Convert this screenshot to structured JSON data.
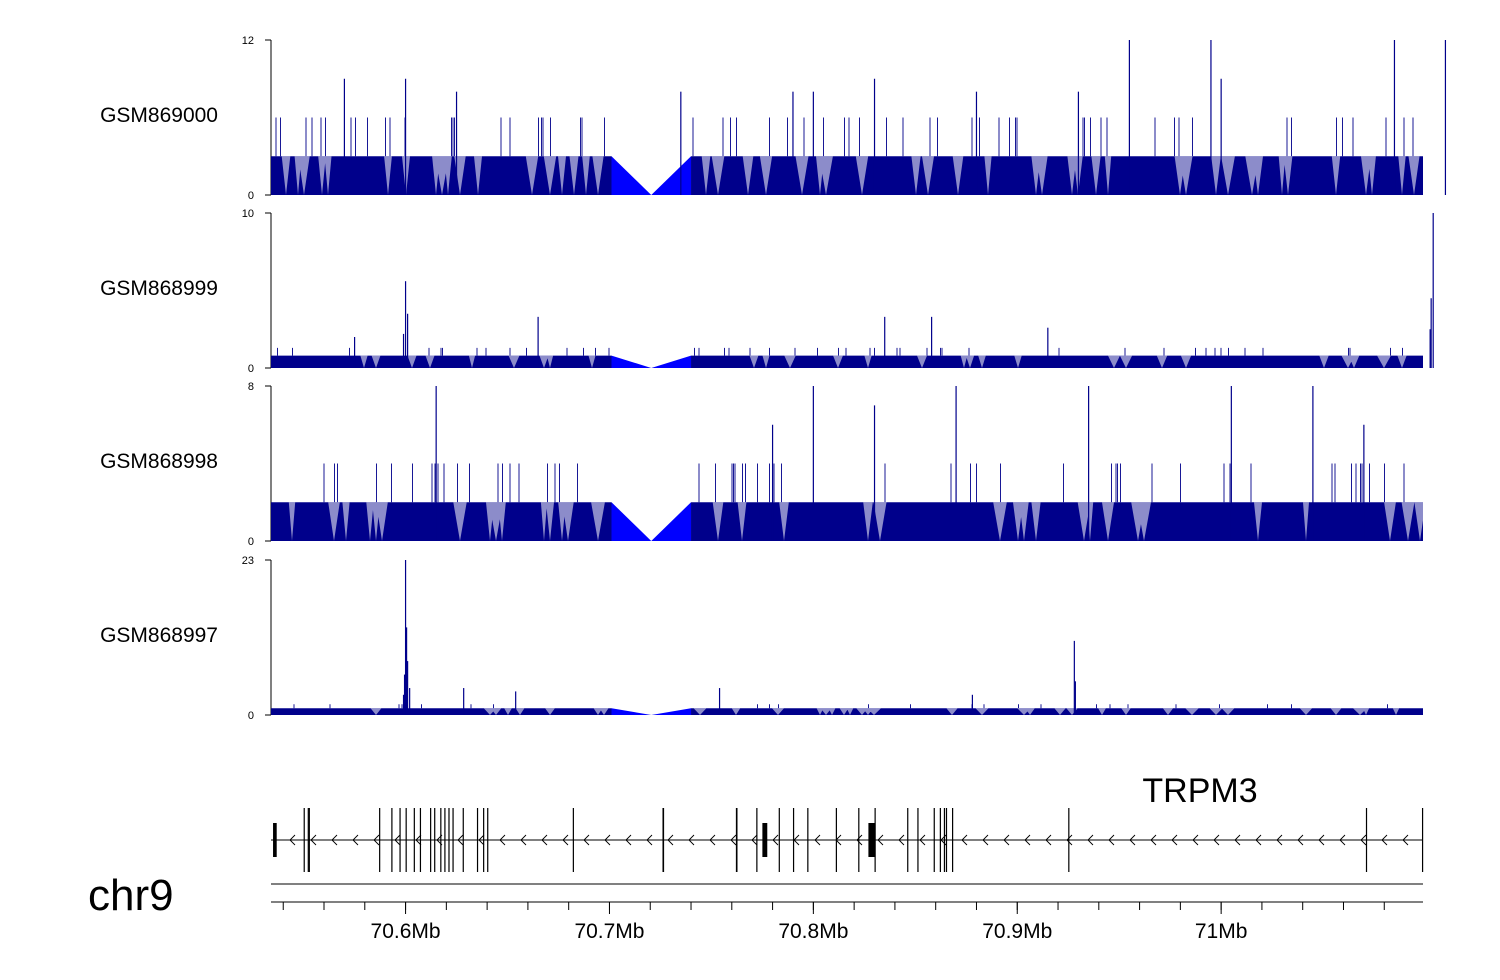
{
  "colors": {
    "signal": "#00008B",
    "fill": "#0000FF",
    "axis": "#000000",
    "background": "#FFFFFF"
  },
  "chromosome": "chr9",
  "gene": {
    "name": "TRPM3",
    "strand": "-"
  },
  "chart_data": [
    {
      "type": "area",
      "track": "GSM869000",
      "ylim": [
        0,
        12
      ],
      "yticks": [
        "0",
        "12"
      ],
      "baseline": 3,
      "medium_level": 6,
      "gap_mb": [
        70.701,
        70.74
      ],
      "seed": 11,
      "medium_rate": 0.09,
      "spikes": [
        {
          "x": 70.625,
          "y": 8
        },
        {
          "x": 70.6,
          "y": 9
        },
        {
          "x": 70.83,
          "y": 9
        },
        {
          "x": 70.8,
          "y": 8
        },
        {
          "x": 70.88,
          "y": 8
        },
        {
          "x": 70.93,
          "y": 8
        },
        {
          "x": 70.955,
          "y": 12
        },
        {
          "x": 70.995,
          "y": 12
        },
        {
          "x": 71.085,
          "y": 12
        },
        {
          "x": 71.11,
          "y": 12
        },
        {
          "x": 71.0,
          "y": 9
        },
        {
          "x": 70.735,
          "y": 8
        },
        {
          "x": 70.79,
          "y": 8
        },
        {
          "x": 70.57,
          "y": 9
        }
      ]
    },
    {
      "type": "area",
      "track": "GSM868999",
      "ylim": [
        0,
        10
      ],
      "yticks": [
        "0",
        "10"
      ],
      "baseline": 0.8,
      "medium_level": 1.3,
      "gap_mb": [
        70.701,
        70.74
      ],
      "seed": 22,
      "medium_rate": 0.05,
      "spikes": [
        {
          "x": 70.6,
          "y": 5.6
        },
        {
          "x": 70.601,
          "y": 3.5
        },
        {
          "x": 70.599,
          "y": 2.2
        },
        {
          "x": 70.665,
          "y": 3.3
        },
        {
          "x": 70.835,
          "y": 3.3
        },
        {
          "x": 70.858,
          "y": 3.3
        },
        {
          "x": 70.915,
          "y": 2.6
        },
        {
          "x": 71.104,
          "y": 10
        },
        {
          "x": 71.103,
          "y": 4.5
        },
        {
          "x": 71.1025,
          "y": 2.5
        },
        {
          "x": 70.575,
          "y": 2.0
        }
      ]
    },
    {
      "type": "area",
      "track": "GSM868998",
      "ylim": [
        0,
        8
      ],
      "yticks": [
        "0",
        "8"
      ],
      "baseline": 2,
      "medium_level": 4,
      "gap_mb": [
        70.701,
        70.74
      ],
      "seed": 33,
      "medium_rate": 0.1,
      "spikes": [
        {
          "x": 70.615,
          "y": 8
        },
        {
          "x": 70.8,
          "y": 8
        },
        {
          "x": 70.87,
          "y": 8
        },
        {
          "x": 70.935,
          "y": 8
        },
        {
          "x": 71.005,
          "y": 8
        },
        {
          "x": 71.045,
          "y": 8
        },
        {
          "x": 70.78,
          "y": 6
        },
        {
          "x": 70.83,
          "y": 7
        },
        {
          "x": 71.07,
          "y": 6
        }
      ]
    },
    {
      "type": "area",
      "track": "GSM868997",
      "ylim": [
        0,
        23
      ],
      "yticks": [
        "0",
        "23"
      ],
      "baseline": 1,
      "medium_level": 1.6,
      "gap_mb": [
        70.701,
        70.74
      ],
      "seed": 44,
      "medium_rate": 0.04,
      "spikes": [
        {
          "x": 70.6,
          "y": 23
        },
        {
          "x": 70.6005,
          "y": 13
        },
        {
          "x": 70.601,
          "y": 8
        },
        {
          "x": 70.5995,
          "y": 6
        },
        {
          "x": 70.602,
          "y": 4
        },
        {
          "x": 70.599,
          "y": 3
        },
        {
          "x": 70.928,
          "y": 11
        },
        {
          "x": 70.9285,
          "y": 5
        },
        {
          "x": 70.6285,
          "y": 4
        },
        {
          "x": 70.754,
          "y": 4
        },
        {
          "x": 70.654,
          "y": 3.5
        },
        {
          "x": 70.878,
          "y": 3
        }
      ]
    }
  ],
  "axis": {
    "x_range_mb": [
      70.534,
      71.099
    ],
    "tick_labels": [
      {
        "value": 70.6,
        "label": "70.6Mb"
      },
      {
        "value": 70.7,
        "label": "70.7Mb"
      },
      {
        "value": 70.8,
        "label": "70.8Mb"
      },
      {
        "value": 70.9,
        "label": "70.9Mb"
      },
      {
        "value": 71.0,
        "label": "71Mb"
      }
    ],
    "minor_step_mb": 0.02
  },
  "exons_mb": [
    {
      "x": 70.535,
      "w": 0.0018
    },
    {
      "x": 70.55,
      "w": 0.0005
    },
    {
      "x": 70.552,
      "w": 0.0004
    },
    {
      "x": 70.5525,
      "w": 0.0003
    },
    {
      "x": 70.587,
      "w": 0.0005
    },
    {
      "x": 70.593,
      "w": 0.0004
    },
    {
      "x": 70.597,
      "w": 0.0004
    },
    {
      "x": 70.6,
      "w": 0.0005
    },
    {
      "x": 70.604,
      "w": 0.0004
    },
    {
      "x": 70.607,
      "w": 0.0004
    },
    {
      "x": 70.612,
      "w": 0.0004
    },
    {
      "x": 70.614,
      "w": 0.0004
    },
    {
      "x": 70.617,
      "w": 0.0004
    },
    {
      "x": 70.619,
      "w": 0.0004
    },
    {
      "x": 70.621,
      "w": 0.0004
    },
    {
      "x": 70.623,
      "w": 0.0004
    },
    {
      "x": 70.628,
      "w": 0.0004
    },
    {
      "x": 70.635,
      "w": 0.0004
    },
    {
      "x": 70.638,
      "w": 0.0004
    },
    {
      "x": 70.64,
      "w": 0.0004
    },
    {
      "x": 70.682,
      "w": 0.0004
    },
    {
      "x": 70.726,
      "w": 0.0008
    },
    {
      "x": 70.762,
      "w": 0.0008
    },
    {
      "x": 70.772,
      "w": 0.0004
    },
    {
      "x": 70.775,
      "w": 0.0024
    },
    {
      "x": 70.783,
      "w": 0.0004
    },
    {
      "x": 70.79,
      "w": 0.0004
    },
    {
      "x": 70.797,
      "w": 0.0004
    },
    {
      "x": 70.811,
      "w": 0.0004
    },
    {
      "x": 70.822,
      "w": 0.0004
    },
    {
      "x": 70.827,
      "w": 0.0035
    },
    {
      "x": 70.83,
      "w": 0.0004
    },
    {
      "x": 70.846,
      "w": 0.0004
    },
    {
      "x": 70.851,
      "w": 0.0004
    },
    {
      "x": 70.859,
      "w": 0.0004
    },
    {
      "x": 70.862,
      "w": 0.0004
    },
    {
      "x": 70.864,
      "w": 0.0004
    },
    {
      "x": 70.865,
      "w": 0.0004
    },
    {
      "x": 70.868,
      "w": 0.0004
    },
    {
      "x": 70.925,
      "w": 0.0004
    },
    {
      "x": 71.071,
      "w": 0.0004
    },
    {
      "x": 71.0985,
      "w": 0.0004
    }
  ]
}
